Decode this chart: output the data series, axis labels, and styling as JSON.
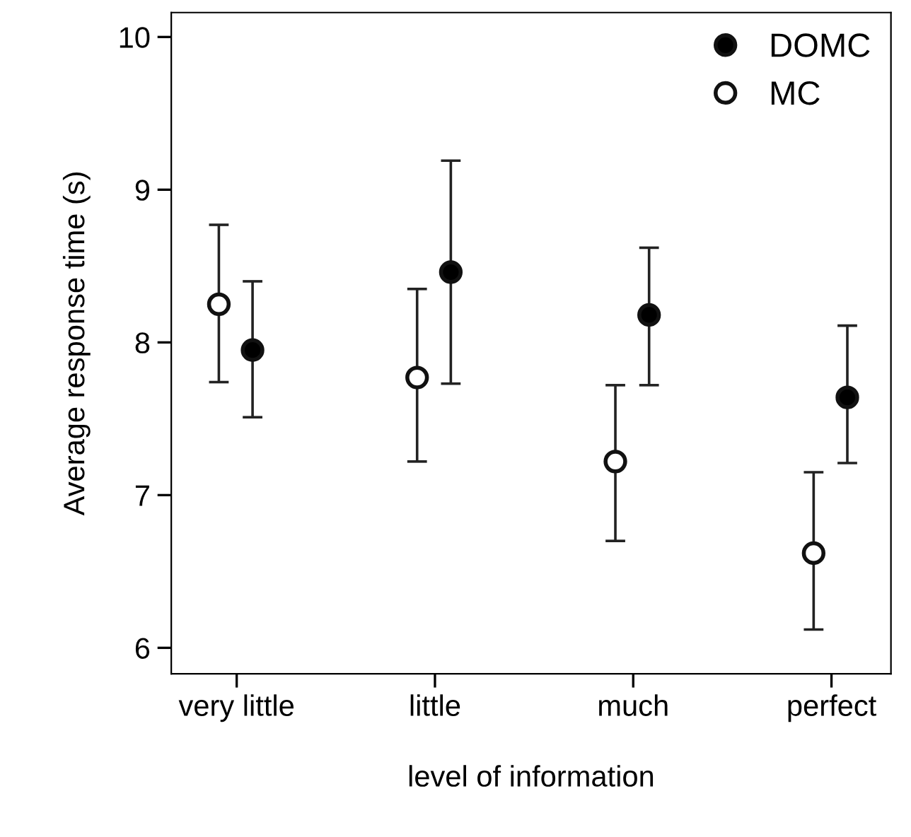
{
  "chart_data": {
    "type": "scatter",
    "xlabel": "level of information",
    "ylabel": "Average response time (s)",
    "categories": [
      "very little",
      "little",
      "much",
      "perfect"
    ],
    "series": [
      {
        "name": "DOMC",
        "color": "#000000",
        "values": [
          7.95,
          8.46,
          8.18,
          7.64
        ],
        "errors": [
          [
            7.51,
            8.4
          ],
          [
            7.73,
            9.19
          ],
          [
            7.72,
            8.62
          ],
          [
            7.21,
            8.11
          ]
        ]
      },
      {
        "name": "MC",
        "color": "#ffffff",
        "values": [
          8.25,
          7.77,
          7.22,
          6.62
        ],
        "errors": [
          [
            7.74,
            8.77
          ],
          [
            7.22,
            8.35
          ],
          [
            6.7,
            7.72
          ],
          [
            6.12,
            7.15
          ]
        ]
      }
    ],
    "ylim": [
      5.83,
      10.16
    ],
    "yticks": [
      6,
      7,
      8,
      9,
      10
    ],
    "legend": "top right",
    "marker": "circle",
    "grid": false
  }
}
